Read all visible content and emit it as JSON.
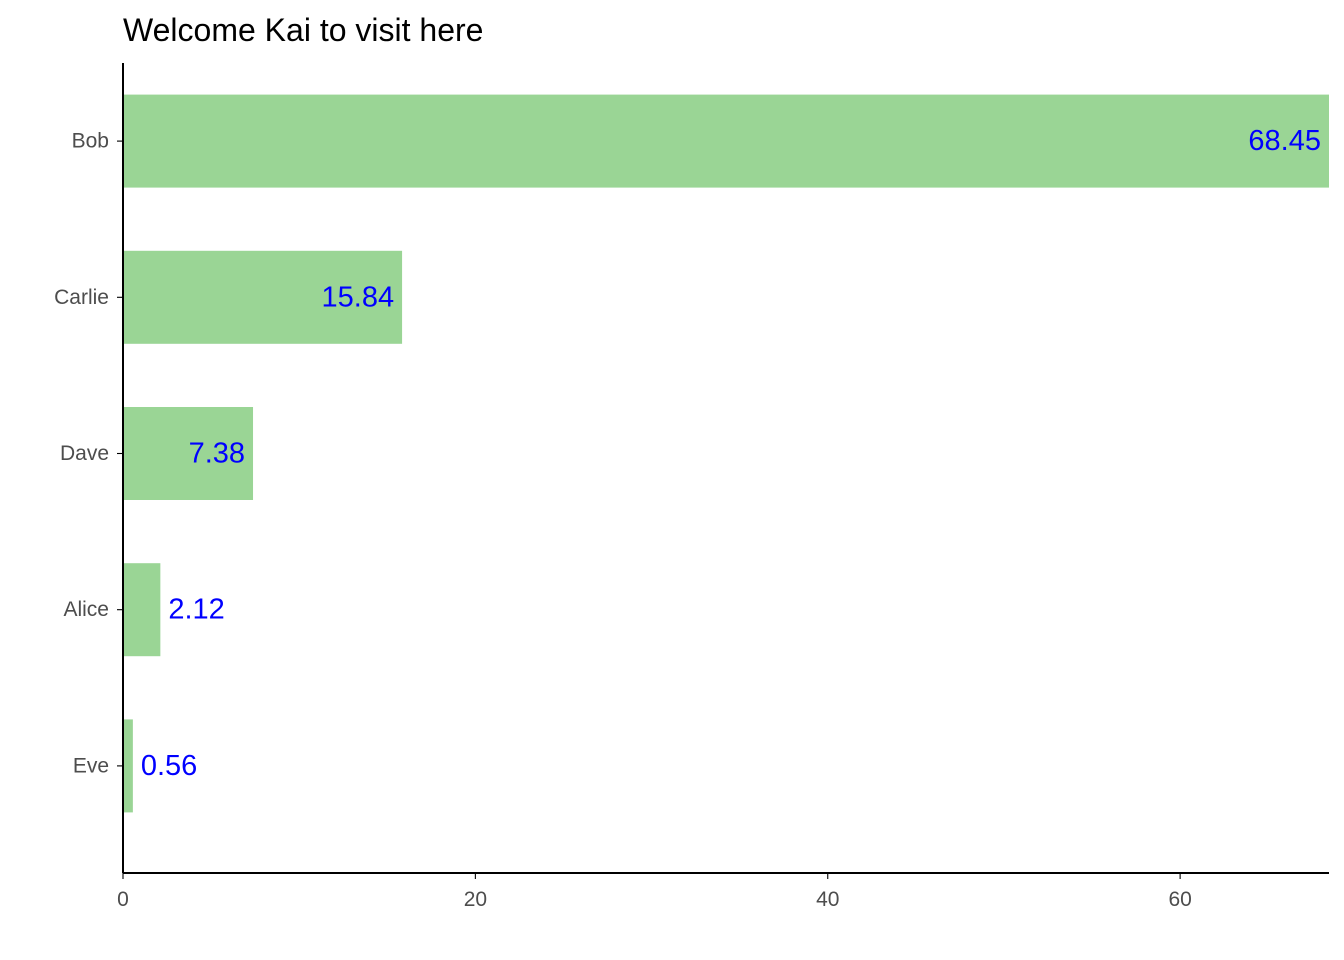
{
  "chart_data": {
    "type": "bar",
    "orientation": "horizontal",
    "title": "Welcome Kai to visit here",
    "xlabel": "",
    "ylabel": "",
    "categories": [
      "Bob",
      "Carlie",
      "Dave",
      "Alice",
      "Eve"
    ],
    "values": [
      68.45,
      15.84,
      7.38,
      2.12,
      0.56
    ],
    "value_labels": [
      "68.45",
      "15.84",
      "7.38",
      "2.12",
      "0.56"
    ],
    "xlim": [
      0,
      68.45
    ],
    "x_ticks": [
      0,
      20,
      40,
      60
    ],
    "x_tick_labels": [
      "0",
      "20",
      "40",
      "60"
    ],
    "grid": false,
    "legend": "none",
    "bar_color": "#9AD595",
    "label_color": "#0000FF",
    "axis_color": "#000000",
    "tick_label_color": "#4D4D4D"
  }
}
